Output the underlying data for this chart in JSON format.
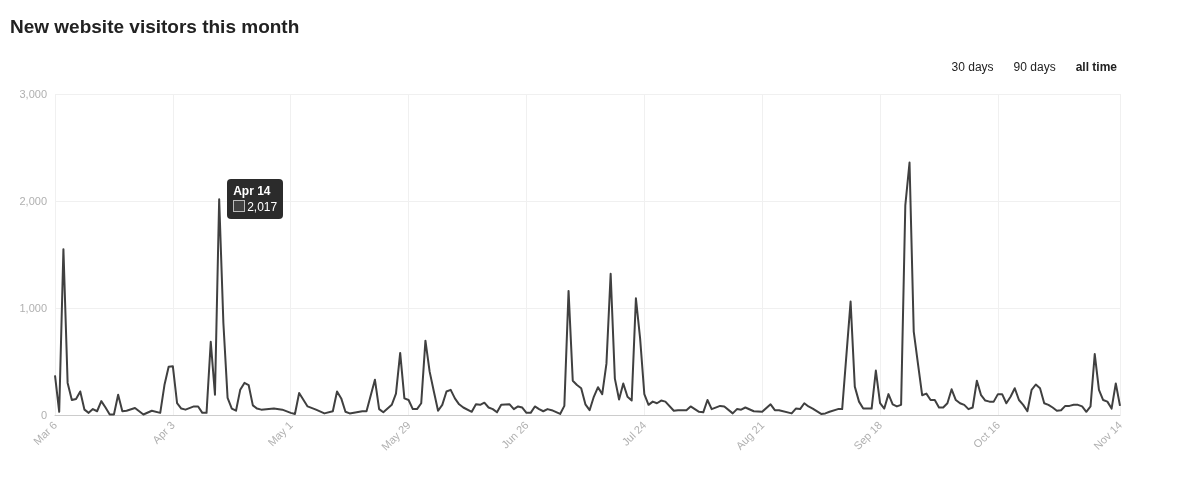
{
  "chart_data": {
    "type": "line",
    "title": "New website visitors this month",
    "color": "#404040",
    "marker": "none",
    "grid": true,
    "xlim": [
      "--03-06",
      "--11-14"
    ],
    "xticks": [
      {
        "value": "--03-06",
        "label": "Mar 6"
      },
      {
        "value": "--04-03",
        "label": "Apr 3"
      },
      {
        "value": "--05-01",
        "label": "May 1"
      },
      {
        "value": "--05-29",
        "label": "May 29"
      },
      {
        "value": "--06-26",
        "label": "Jun 26"
      },
      {
        "value": "--07-24",
        "label": "Jul 24"
      },
      {
        "value": "--08-21",
        "label": "Aug 21"
      },
      {
        "value": "--09-18",
        "label": "Sep 18"
      },
      {
        "value": "--10-16",
        "label": "Oct 16"
      },
      {
        "value": "--11-14",
        "label": "Nov 14"
      }
    ],
    "ylim": [
      0,
      3000
    ],
    "yticks": [
      0,
      {
        "value": 1000,
        "label": "1,000"
      },
      {
        "value": 2000,
        "label": "2,000"
      },
      {
        "value": 3000,
        "label": "3,000"
      }
    ],
    "x": [
      "--03-06",
      "--03-07",
      "--03-08",
      "--03-09",
      "--03-10",
      "--03-11",
      "--03-12",
      "--03-13",
      "--03-14",
      "--03-15",
      "--03-16",
      "--03-17",
      "--03-18",
      "--03-19",
      "--03-20",
      "--03-21",
      "--03-22",
      "--03-23",
      "--03-25",
      "--03-27",
      "--03-29",
      "--03-31",
      "--04-01",
      "--04-02",
      "--04-03",
      "--04-04",
      "--04-05",
      "--04-06",
      "--04-08",
      "--04-09",
      "--04-10",
      "--04-11",
      "--04-12",
      "--04-13",
      "--04-14",
      "--04-15",
      "--04-16",
      "--04-17",
      "--04-18",
      "--04-19",
      "--04-20",
      "--04-21",
      "--04-22",
      "--04-23",
      "--04-24",
      "--04-27",
      "--04-29",
      "--05-01",
      "--05-02",
      "--05-03",
      "--05-05",
      "--05-07",
      "--05-09",
      "--05-11",
      "--05-12",
      "--05-13",
      "--05-14",
      "--05-15",
      "--05-18",
      "--05-19",
      "--05-21",
      "--05-22",
      "--05-23",
      "--05-25",
      "--05-26",
      "--05-27",
      "--05-28",
      "--05-29",
      "--05-30",
      "--05-31",
      "--06-01",
      "--06-02",
      "--06-03",
      "--06-04",
      "--06-05",
      "--06-06",
      "--06-07",
      "--06-08",
      "--06-09",
      "--06-10",
      "--06-11",
      "--06-13",
      "--06-14",
      "--06-15",
      "--06-16",
      "--06-17",
      "--06-18",
      "--06-19",
      "--06-20",
      "--06-22",
      "--06-23",
      "--06-24",
      "--06-25",
      "--06-26",
      "--06-27",
      "--06-28",
      "--06-29",
      "--06-30",
      "--07-01",
      "--07-02",
      "--07-04",
      "--07-05",
      "--07-06",
      "--07-07",
      "--07-08",
      "--07-09",
      "--07-10",
      "--07-11",
      "--07-12",
      "--07-13",
      "--07-14",
      "--07-15",
      "--07-16",
      "--07-17",
      "--07-18",
      "--07-19",
      "--07-20",
      "--07-21",
      "--07-22",
      "--07-23",
      "--07-24",
      "--07-25",
      "--07-26",
      "--07-27",
      "--07-28",
      "--07-29",
      "--07-31",
      "--08-01",
      "--08-03",
      "--08-04",
      "--08-05",
      "--08-06",
      "--08-07",
      "--08-08",
      "--08-09",
      "--08-11",
      "--08-12",
      "--08-14",
      "--08-15",
      "--08-16",
      "--08-17",
      "--08-19",
      "--08-21",
      "--08-23",
      "--08-24",
      "--08-25",
      "--08-28",
      "--08-29",
      "--08-30",
      "--08-31",
      "--09-01",
      "--09-02",
      "--09-04",
      "--09-05",
      "--09-06",
      "--09-08",
      "--09-09",
      "--09-11",
      "--09-12",
      "--09-13",
      "--09-14",
      "--09-16",
      "--09-17",
      "--09-18",
      "--09-19",
      "--09-20",
      "--09-21",
      "--09-22",
      "--09-23",
      "--09-24",
      "--09-25",
      "--09-26",
      "--09-27",
      "--09-28",
      "--09-29",
      "--09-30",
      "--10-01",
      "--10-02",
      "--10-03",
      "--10-04",
      "--10-05",
      "--10-06",
      "--10-07",
      "--10-08",
      "--10-09",
      "--10-10",
      "--10-11",
      "--10-12",
      "--10-13",
      "--10-14",
      "--10-15",
      "--10-16",
      "--10-17",
      "--10-18",
      "--10-19",
      "--10-20",
      "--10-21",
      "--10-22",
      "--10-23",
      "--10-24",
      "--10-25",
      "--10-26",
      "--10-27",
      "--10-28",
      "--10-29",
      "--10-30",
      "--10-31",
      "--11-01",
      "--11-02",
      "--11-03",
      "--11-04",
      "--11-05",
      "--11-06",
      "--11-07",
      "--11-08",
      "--11-09",
      "--11-10",
      "--11-11",
      "--11-12",
      "--11-13",
      "--11-14"
    ],
    "values": [
      370,
      30,
      1550,
      300,
      140,
      150,
      220,
      50,
      20,
      55,
      35,
      130,
      70,
      5,
      5,
      190,
      35,
      40,
      65,
      5,
      40,
      20,
      280,
      450,
      455,
      110,
      60,
      50,
      80,
      80,
      20,
      20,
      685,
      190,
      2017,
      860,
      160,
      60,
      40,
      235,
      300,
      280,
      90,
      60,
      50,
      60,
      50,
      20,
      10,
      205,
      80,
      50,
      15,
      35,
      220,
      155,
      30,
      15,
      35,
      35,
      330,
      55,
      25,
      95,
      200,
      580,
      155,
      140,
      55,
      55,
      110,
      695,
      405,
      220,
      40,
      95,
      220,
      235,
      155,
      100,
      70,
      30,
      100,
      95,
      115,
      70,
      55,
      25,
      95,
      100,
      55,
      80,
      70,
      20,
      20,
      80,
      55,
      35,
      55,
      45,
      10,
      85,
      1160,
      320,
      280,
      250,
      100,
      45,
      170,
      260,
      195,
      480,
      1320,
      340,
      145,
      295,
      170,
      135,
      1090,
      715,
      195,
      95,
      125,
      110,
      135,
      125,
      40,
      45,
      45,
      80,
      55,
      30,
      25,
      140,
      55,
      85,
      80,
      15,
      55,
      50,
      70,
      35,
      30,
      100,
      45,
      45,
      15,
      60,
      55,
      110,
      80,
      60,
      10,
      15,
      30,
      55,
      55,
      1060,
      265,
      125,
      60,
      60,
      415,
      110,
      60,
      195,
      100,
      80,
      95,
      1960,
      2360,
      780,
      480,
      185,
      200,
      140,
      140,
      70,
      70,
      110,
      240,
      140,
      110,
      95,
      55,
      70,
      320,
      185,
      135,
      125,
      125,
      195,
      195,
      110,
      170,
      250,
      140,
      95,
      35,
      235,
      285,
      250,
      110,
      95,
      70,
      40,
      45,
      85,
      85,
      95,
      95,
      80,
      30,
      80,
      570,
      235,
      140,
      125,
      60,
      295,
      85
    ],
    "annotations": [
      {
        "text": "Apr 14\n2,017",
        "x": "--04-14",
        "y": 2017
      },
      "30 days",
      "90 days",
      "all time"
    ]
  }
}
